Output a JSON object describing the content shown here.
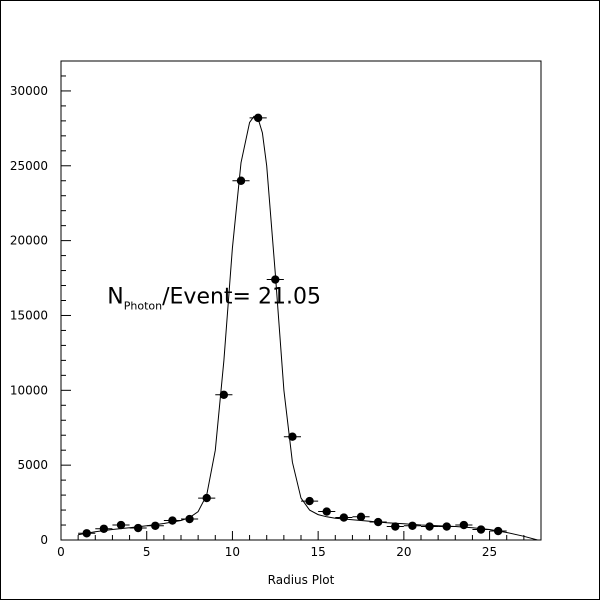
{
  "chart_data": {
    "type": "scatter",
    "title": "",
    "xlabel": "Radius Plot",
    "ylabel": "",
    "xlim": [
      0,
      28
    ],
    "ylim": [
      0,
      32000
    ],
    "x_ticks": [
      "0",
      "5",
      "10",
      "15",
      "20",
      "25"
    ],
    "x_tick_values": [
      0,
      5,
      10,
      15,
      20,
      25
    ],
    "y_ticks": [
      "0",
      "5000",
      "10000",
      "15000",
      "20000",
      "25000",
      "30000"
    ],
    "y_tick_values": [
      0,
      5000,
      10000,
      15000,
      20000,
      25000,
      30000
    ],
    "grid": false,
    "legend": "none",
    "annotation": {
      "main": "N",
      "sub": "Photon",
      "rest": "/Event= 21.05",
      "x": 2.7,
      "y": 15800
    },
    "points": {
      "x": [
        1.5,
        2.5,
        3.5,
        4.5,
        5.5,
        6.5,
        7.5,
        8.5,
        9.5,
        10.5,
        11.5,
        12.5,
        13.5,
        14.5,
        15.5,
        16.5,
        17.5,
        18.5,
        19.5,
        20.5,
        21.5,
        22.5,
        23.5,
        24.5,
        25.5
      ],
      "y": [
        450,
        750,
        1000,
        800,
        950,
        1300,
        1400,
        2800,
        9700,
        24000,
        28200,
        17400,
        6900,
        2600,
        1900,
        1500,
        1550,
        1200,
        900,
        950,
        900,
        900,
        1000,
        700,
        600
      ],
      "xerr": 0.5
    },
    "fit_curve": {
      "x": [
        1.0,
        2.0,
        3.0,
        4.0,
        5.0,
        6.0,
        7.0,
        7.5,
        8.0,
        8.5,
        9.0,
        9.5,
        10.0,
        10.5,
        11.0,
        11.25,
        11.5,
        11.75,
        12.0,
        12.5,
        13.0,
        13.5,
        14.0,
        14.5,
        15.0,
        15.5,
        16.0,
        17.0,
        18.0,
        19.0,
        20.0,
        21.0,
        22.0,
        23.0,
        24.0,
        25.0,
        26.0,
        27.0,
        27.8
      ],
      "y": [
        350,
        550,
        700,
        820,
        950,
        1100,
        1300,
        1500,
        1900,
        3000,
        6000,
        12000,
        19500,
        25200,
        27900,
        28300,
        28150,
        27200,
        25000,
        17800,
        10000,
        5200,
        2800,
        2000,
        1700,
        1550,
        1450,
        1350,
        1250,
        1150,
        1080,
        1000,
        950,
        900,
        820,
        700,
        500,
        250,
        0
      ]
    },
    "colors": {
      "marker": "#000000",
      "line": "#000000"
    }
  }
}
